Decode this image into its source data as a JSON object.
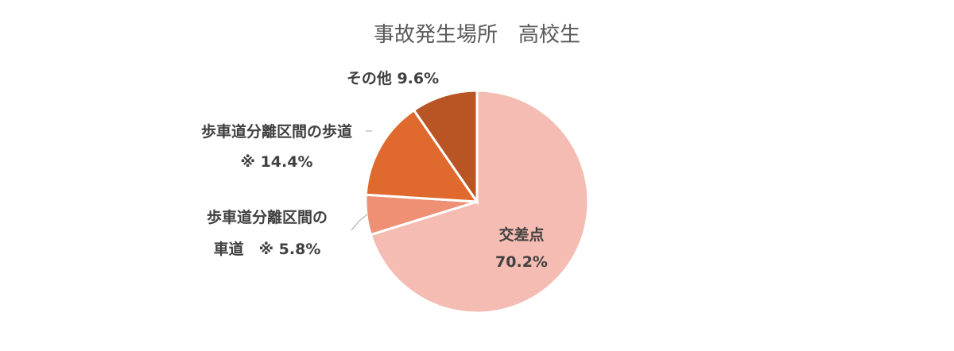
{
  "chart_data": {
    "type": "pie",
    "title": "事故発生場所　高校生",
    "slices": [
      {
        "label_lines": [
          "交差点",
          "70.2%"
        ],
        "value": 70.2,
        "color": "#F4BCB3"
      },
      {
        "label_lines": [
          "歩車道分離区間の",
          "車道　※ 5.8%"
        ],
        "value": 5.8,
        "color": "#EE9074"
      },
      {
        "label_lines": [
          "歩車道分離区間の歩道",
          "※ 14.4%"
        ],
        "value": 14.4,
        "color": "#E0692D"
      },
      {
        "label_lines": [
          "その他 9.6%"
        ],
        "value": 9.6,
        "color": "#B95424"
      }
    ],
    "start": "12 o'clock",
    "direction": "clockwise",
    "legend": "none"
  }
}
